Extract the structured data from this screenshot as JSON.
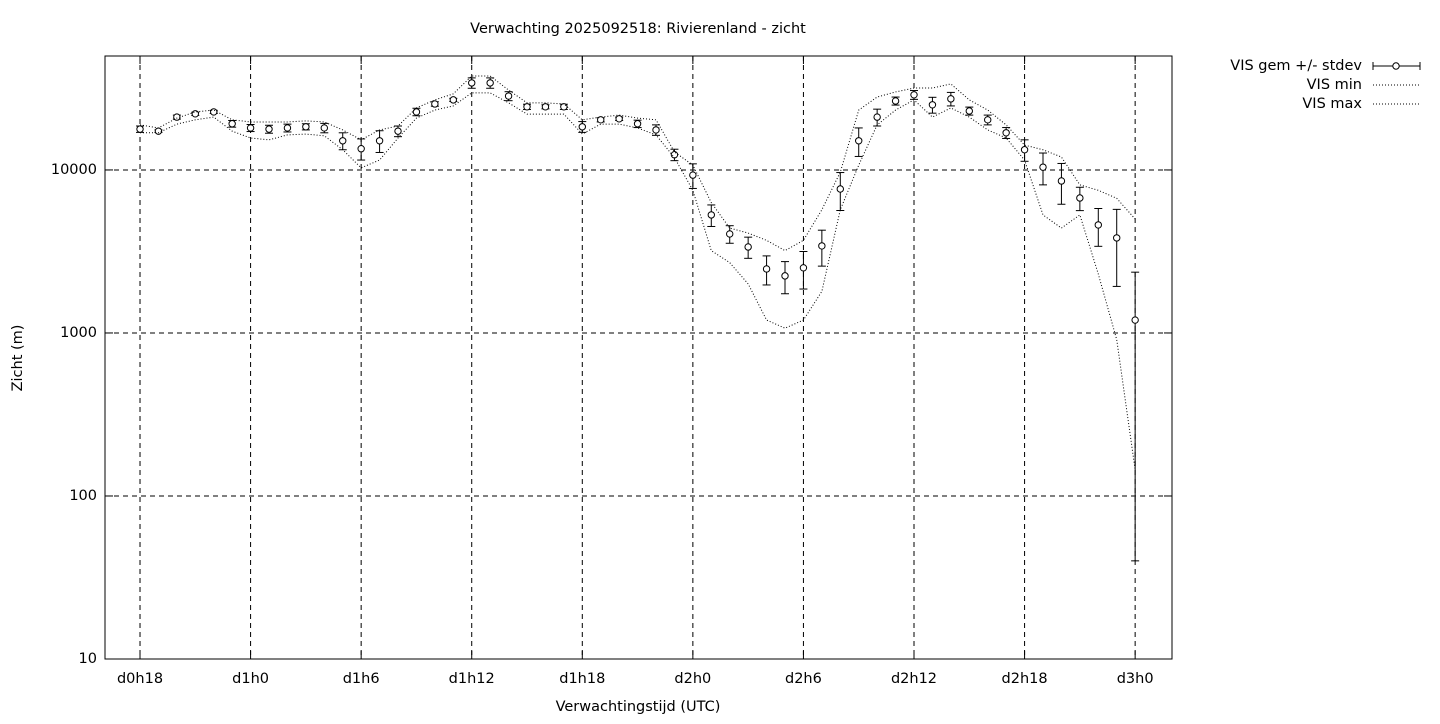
{
  "chart_data": {
    "type": "line",
    "title": "Verwachting 2025092518: Rivierenland - zicht",
    "x_label": "Verwachtingstijd (UTC)",
    "y_label": "Zicht (m)",
    "log_y": true,
    "grid": true,
    "legend": "outside-top-right",
    "x": [
      18,
      19,
      20,
      21,
      22,
      23,
      24,
      25,
      26,
      27,
      28,
      29,
      30,
      31,
      32,
      33,
      34,
      35,
      36,
      37,
      38,
      39,
      40,
      41,
      42,
      43,
      44,
      45,
      46,
      47,
      48,
      49,
      50,
      51,
      52,
      53,
      54,
      55,
      56,
      57,
      58,
      59,
      60,
      61,
      62,
      63,
      64,
      65,
      66,
      67,
      68,
      69,
      70,
      71,
      72
    ],
    "xlim": [
      16.1,
      74
    ],
    "xticks": [
      {
        "value": 18,
        "label": "d0h18"
      },
      {
        "value": 24,
        "label": "d1h0"
      },
      {
        "value": 30,
        "label": "d1h6"
      },
      {
        "value": 36,
        "label": "d1h12"
      },
      {
        "value": 42,
        "label": "d1h18"
      },
      {
        "value": 48,
        "label": "d2h0"
      },
      {
        "value": 54,
        "label": "d2h6"
      },
      {
        "value": 60,
        "label": "d2h12"
      },
      {
        "value": 66,
        "label": "d2h18"
      },
      {
        "value": 72,
        "label": "d3h0"
      }
    ],
    "ylim": [
      10,
      50000
    ],
    "yticks": [
      10,
      100,
      1000,
      10000
    ],
    "series": [
      {
        "name": "VIS gem +/- stdev",
        "color": "#000000",
        "style": "errorbars",
        "values": [
          17800,
          17300,
          21100,
          22100,
          22700,
          19200,
          18100,
          17800,
          18100,
          18400,
          18100,
          15100,
          13500,
          15100,
          17300,
          22700,
          25400,
          26900,
          34200,
          34200,
          28400,
          24400,
          24400,
          24400,
          18400,
          20300,
          20600,
          19200,
          17600,
          12400,
          9300,
          5300,
          4050,
          3370,
          2470,
          2240,
          2510,
          3420,
          7640,
          15100,
          21100,
          26500,
          28900,
          25100,
          27300,
          23000,
          20300,
          16900,
          13300,
          10400,
          8560,
          6730,
          4600,
          3830,
          1200
        ],
        "errors": [
          800,
          300,
          600,
          500,
          500,
          900,
          900,
          1000,
          1000,
          800,
          1200,
          1800,
          2000,
          2300,
          1300,
          1200,
          800,
          600,
          2500,
          2500,
          1800,
          900,
          700,
          900,
          1400,
          600,
          500,
          1000,
          1300,
          1000,
          1600,
          800,
          500,
          500,
          500,
          500,
          650,
          850,
          2000,
          3000,
          2500,
          1500,
          1800,
          2800,
          2600,
          1300,
          1400,
          1300,
          2000,
          2300,
          2400,
          1100,
          1200,
          1900,
          1160
        ]
      },
      {
        "name": "VIS min",
        "color": "#000000",
        "style": "dotted",
        "values": [
          16900,
          16900,
          19100,
          20300,
          21100,
          17300,
          15700,
          15300,
          16400,
          16600,
          16200,
          13300,
          10300,
          11500,
          15700,
          20800,
          23300,
          24700,
          29700,
          29700,
          25800,
          22000,
          22000,
          22000,
          16600,
          19100,
          19100,
          18100,
          16400,
          11900,
          7500,
          3200,
          2700,
          2000,
          1200,
          1070,
          1200,
          1800,
          5700,
          10700,
          18900,
          23300,
          26900,
          21100,
          24000,
          21100,
          17600,
          15700,
          11500,
          5300,
          4400,
          5300,
          2300,
          910,
          145
        ]
      },
      {
        "name": "VIS max",
        "color": "#000000",
        "style": "dotted",
        "values": [
          18900,
          18100,
          20800,
          22700,
          23300,
          20300,
          19700,
          19700,
          19700,
          20000,
          19700,
          17600,
          15300,
          17600,
          18600,
          24000,
          26900,
          29300,
          37700,
          37700,
          30900,
          25800,
          25800,
          25400,
          20300,
          21100,
          21700,
          20800,
          20300,
          12900,
          10700,
          6300,
          4400,
          4100,
          3700,
          3200,
          3700,
          5700,
          9700,
          23300,
          28000,
          30100,
          31800,
          31800,
          33700,
          26900,
          23300,
          18900,
          14200,
          13300,
          12000,
          8100,
          7500,
          6700,
          5000
        ]
      }
    ]
  }
}
